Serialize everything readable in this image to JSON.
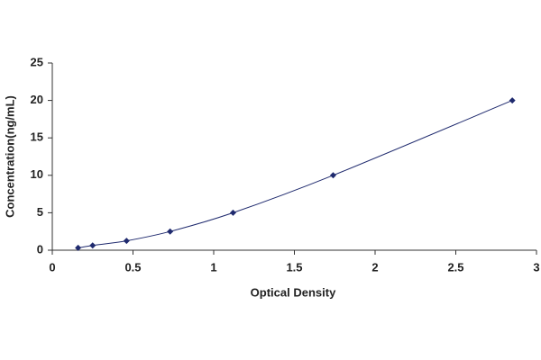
{
  "chart_data": {
    "type": "line",
    "x_label": "Optical Density",
    "y_label": "Concentration(ng/mL)",
    "series": [
      {
        "color": "#1f2a6e",
        "x": [
          0.16,
          0.25,
          0.46,
          0.73,
          1.12,
          1.74,
          2.85
        ],
        "values": [
          0.31,
          0.63,
          1.25,
          2.5,
          5,
          10,
          20
        ]
      }
    ],
    "xlim": [
      0,
      3
    ],
    "xticks": [
      0,
      0.5,
      1,
      1.5,
      2,
      2.5,
      3
    ],
    "ylim": [
      0,
      25
    ],
    "yticks": [
      0,
      5,
      10,
      15,
      20,
      25
    ]
  }
}
